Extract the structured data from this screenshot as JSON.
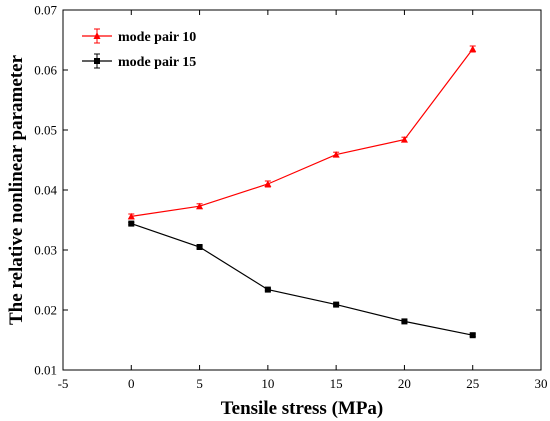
{
  "chart_data": {
    "type": "line",
    "xlabel": "Tensile stress (MPa)",
    "ylabel": "The relative nonlinear parameter",
    "xlim": [
      -5,
      30
    ],
    "ylim": [
      0.01,
      0.07
    ],
    "xticks": [
      -5,
      0,
      5,
      10,
      15,
      20,
      25,
      30
    ],
    "yticks": [
      0.01,
      0.02,
      0.03,
      0.04,
      0.05,
      0.06,
      0.07
    ],
    "xtick_labels": [
      "-5",
      "0",
      "5",
      "10",
      "15",
      "20",
      "25",
      "30"
    ],
    "ytick_labels": [
      "0.01",
      "0.02",
      "0.03",
      "0.04",
      "0.05",
      "0.06",
      "0.07"
    ],
    "grid": false,
    "legend_position": "top-left",
    "x": [
      0,
      5,
      10,
      15,
      20,
      25
    ],
    "series": [
      {
        "name": "mode pair 10",
        "color": "#ff0000",
        "marker": "triangle",
        "values": [
          0.0356,
          0.0373,
          0.041,
          0.0459,
          0.0484,
          0.0635
        ],
        "errors": [
          0.0004,
          0.0004,
          0.0005,
          0.0004,
          0.0004,
          0.0005
        ]
      },
      {
        "name": "mode pair 15",
        "color": "#000000",
        "marker": "square",
        "values": [
          0.0344,
          0.0305,
          0.0234,
          0.0209,
          0.0181,
          0.0158
        ],
        "errors": [
          0.0002,
          0.0002,
          0.0002,
          0.0002,
          0.0002,
          0.0002
        ]
      }
    ]
  }
}
